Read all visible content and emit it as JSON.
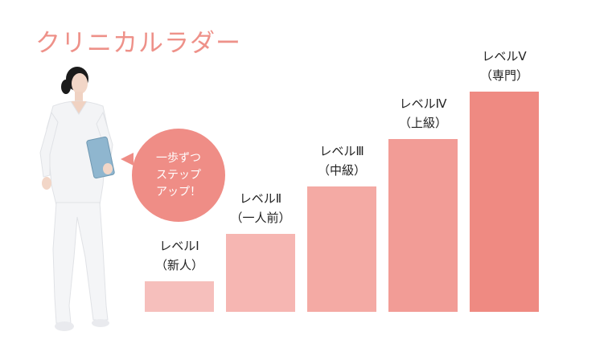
{
  "page": {
    "title": "クリニカルラダー"
  },
  "colors": {
    "title": "#ee9189",
    "bubble": "#ef8d86",
    "levels": [
      "#f6bfbc",
      "#f6b6b2",
      "#f4aaa4",
      "#f29c96",
      "#ef8a82"
    ]
  },
  "bubble": {
    "lines": [
      "一歩ずつ",
      "ステップ",
      "アップ！"
    ]
  },
  "chart_data": {
    "type": "bar",
    "categories": [
      "レベルⅠ",
      "レベルⅡ",
      "レベルⅢ",
      "レベルⅣ",
      "レベルⅤ"
    ],
    "sublabels": [
      "（新人）",
      "（一人前）",
      "（中級）",
      "（上級）",
      "（専門）"
    ],
    "values": [
      1,
      2,
      3,
      4,
      5
    ],
    "ylim": [
      0,
      5
    ],
    "grid": false,
    "legend": "none"
  },
  "illustration": {
    "figure": "nurse-with-clipboard-icon"
  }
}
